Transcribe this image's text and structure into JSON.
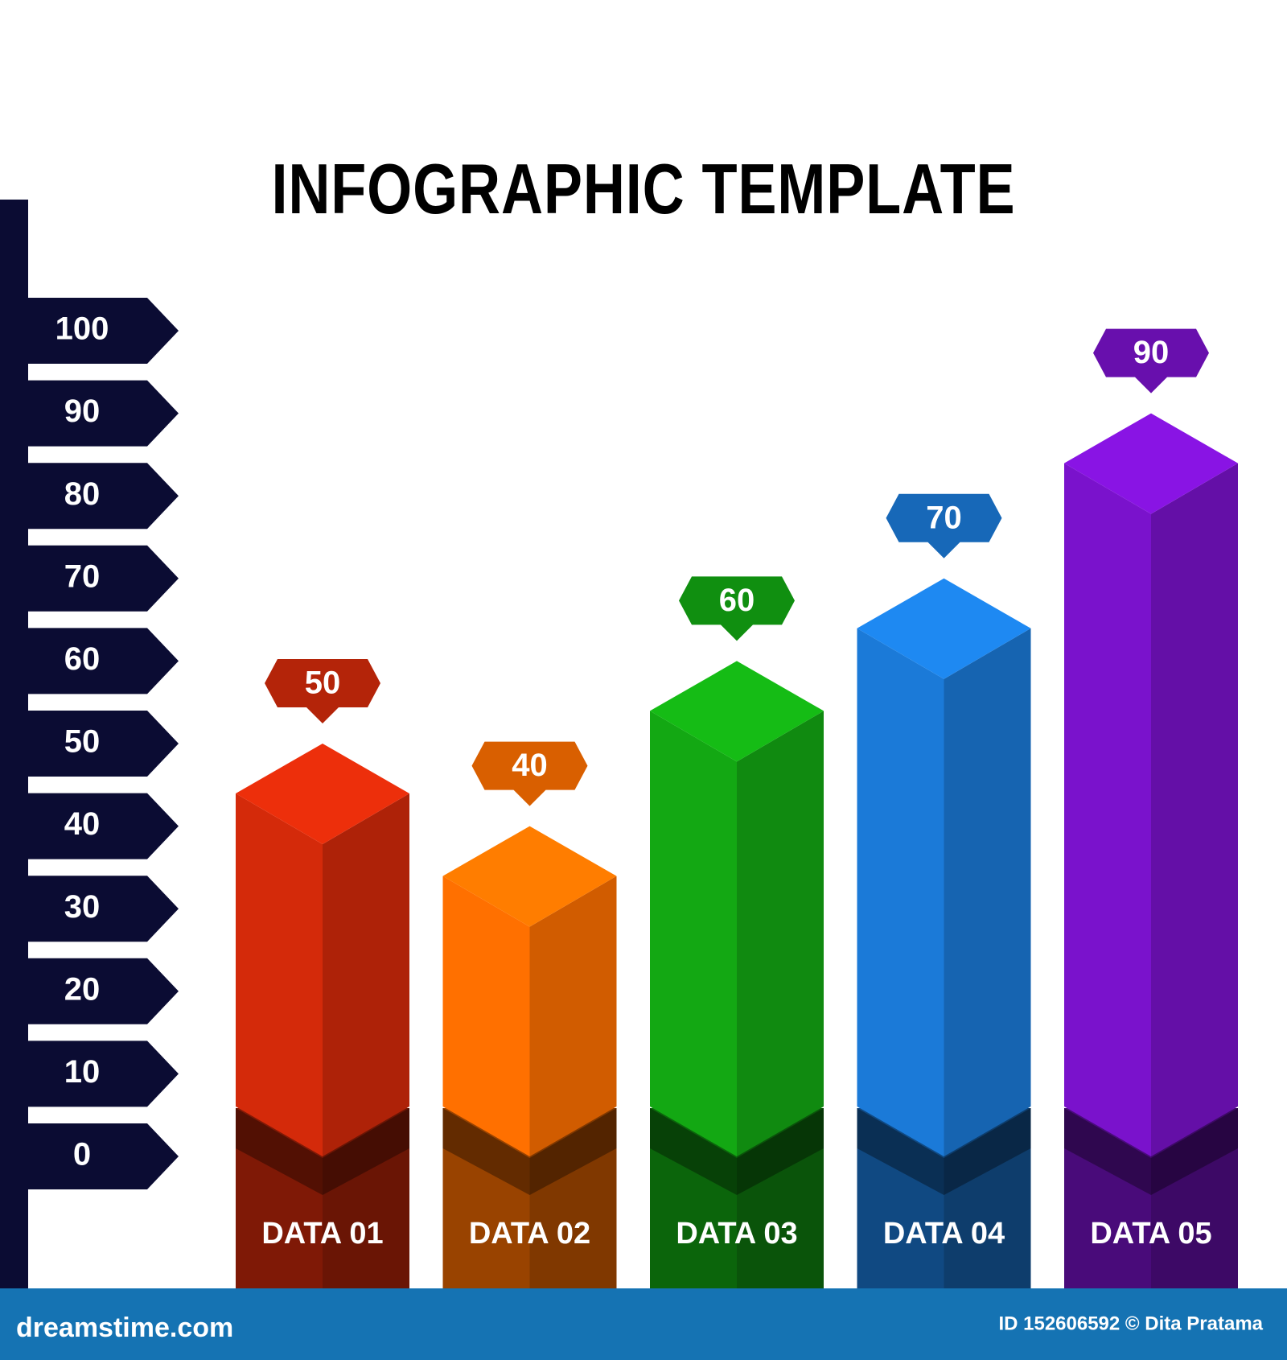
{
  "chart_data": {
    "type": "bar",
    "title": "INFOGRAPHIC TEMPLATE",
    "categories": [
      "DATA 01",
      "DATA 02",
      "DATA 03",
      "DATA 04",
      "DATA 05"
    ],
    "values": [
      50,
      40,
      60,
      70,
      90
    ],
    "colors": [
      "#d42a0a",
      "#ff7000",
      "#13a813",
      "#1b7ad8",
      "#7a12cc"
    ],
    "ylim": [
      0,
      100
    ],
    "yticks": [
      0,
      10,
      20,
      30,
      40,
      50,
      60,
      70,
      80,
      90,
      100
    ]
  },
  "footer": {
    "left": "dreamstime.com",
    "right": "ID 152606592 © Dita Pratama"
  }
}
